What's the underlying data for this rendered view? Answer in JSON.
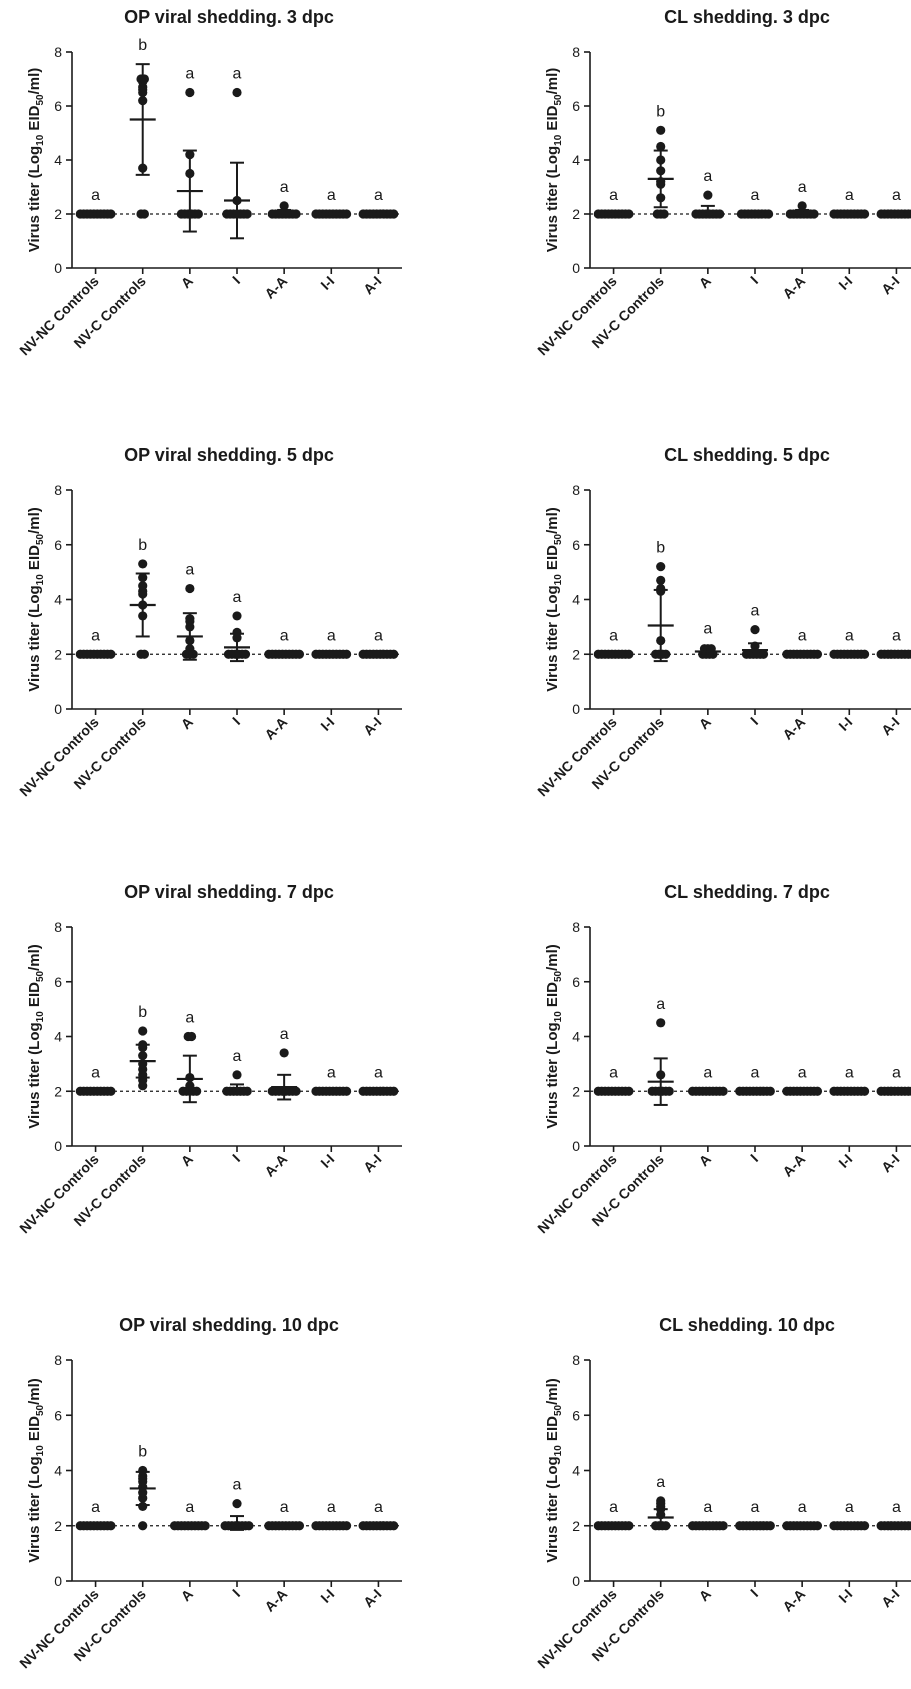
{
  "chart_data": [
    {
      "type": "scatter",
      "title": "OP viral shedding. 3 dpc",
      "ylabel": "Virus titer (Log10 EID50/ml)",
      "ylim": [
        0,
        8
      ],
      "yticks": [
        "0",
        "2",
        "4",
        "6",
        "8"
      ],
      "reference_line": 2,
      "categories": [
        "NV-NC Controls",
        "NV-C Controls",
        "A",
        "I",
        "A-A",
        "I-I",
        "A-I"
      ],
      "letters": [
        "a",
        "b",
        "a",
        "a",
        "a",
        "a",
        "a"
      ],
      "mean": [
        2.0,
        5.5,
        2.85,
        2.5,
        2.05,
        2.0,
        2.0
      ],
      "sd": [
        0,
        2.05,
        1.5,
        1.4,
        0.1,
        0,
        0
      ],
      "points": [
        [
          2,
          2,
          2,
          2,
          2,
          2,
          2,
          2,
          2,
          2
        ],
        [
          2,
          2,
          3.7,
          6.2,
          6.5,
          6.6,
          6.7,
          6.9,
          7.0,
          7.0
        ],
        [
          2,
          2,
          2,
          2,
          2,
          2,
          3.5,
          4.2,
          6.5
        ],
        [
          2,
          2,
          2,
          2,
          2,
          2,
          2,
          2.5,
          6.5
        ],
        [
          2,
          2,
          2,
          2,
          2,
          2,
          2,
          2,
          2.3
        ],
        [
          2,
          2,
          2,
          2,
          2,
          2,
          2,
          2,
          2,
          2
        ],
        [
          2,
          2,
          2,
          2,
          2,
          2,
          2,
          2,
          2,
          2
        ]
      ]
    },
    {
      "type": "scatter",
      "title": "CL shedding. 3 dpc",
      "ylabel": "Virus titer (Log10 EID50/ml)",
      "ylim": [
        0,
        8
      ],
      "yticks": [
        "0",
        "2",
        "4",
        "6",
        "8"
      ],
      "reference_line": 2,
      "categories": [
        "NV-NC Controls",
        "NV-C Controls",
        "A",
        "I",
        "A-A",
        "I-I",
        "A-I"
      ],
      "letters": [
        "a",
        "b",
        "a",
        "a",
        "a",
        "a",
        "a"
      ],
      "mean": [
        2.0,
        3.3,
        2.1,
        2.0,
        2.05,
        2.0,
        2.0
      ],
      "sd": [
        0,
        1.05,
        0.2,
        0,
        0.1,
        0,
        0
      ],
      "points": [
        [
          2,
          2,
          2,
          2,
          2,
          2,
          2,
          2,
          2,
          2
        ],
        [
          2,
          2,
          2,
          2.6,
          3.1,
          3.2,
          3.6,
          4.0,
          4.5,
          5.1
        ],
        [
          2,
          2,
          2,
          2,
          2,
          2,
          2,
          2,
          2.7
        ],
        [
          2,
          2,
          2,
          2,
          2,
          2,
          2,
          2,
          2
        ],
        [
          2,
          2,
          2,
          2,
          2,
          2,
          2,
          2,
          2.3
        ],
        [
          2,
          2,
          2,
          2,
          2,
          2,
          2,
          2,
          2,
          2
        ],
        [
          2,
          2,
          2,
          2,
          2,
          2,
          2,
          2,
          2,
          2
        ]
      ]
    },
    {
      "type": "scatter",
      "title": "OP viral shedding. 5 dpc",
      "ylabel": "Virus titer (Log10 EID50/ml)",
      "ylim": [
        0,
        8
      ],
      "yticks": [
        "0",
        "2",
        "4",
        "6",
        "8"
      ],
      "reference_line": 2,
      "categories": [
        "NV-NC Controls",
        "NV-C Controls",
        "A",
        "I",
        "A-A",
        "I-I",
        "A-I"
      ],
      "letters": [
        "a",
        "b",
        "a",
        "a",
        "a",
        "a",
        "a"
      ],
      "mean": [
        2.0,
        3.8,
        2.65,
        2.25,
        2.0,
        2.0,
        2.0
      ],
      "sd": [
        0,
        1.15,
        0.85,
        0.5,
        0,
        0,
        0
      ],
      "points": [
        [
          2,
          2,
          2,
          2,
          2,
          2,
          2,
          2,
          2,
          2
        ],
        [
          2,
          2,
          3.4,
          3.8,
          4.2,
          4.3,
          4.5,
          4.8,
          5.3
        ],
        [
          2,
          2,
          2,
          2.2,
          2.5,
          3.0,
          3.2,
          3.3,
          4.4
        ],
        [
          2,
          2,
          2,
          2,
          2,
          2,
          2.6,
          2.8,
          3.4
        ],
        [
          2,
          2,
          2,
          2,
          2,
          2,
          2,
          2,
          2,
          2
        ],
        [
          2,
          2,
          2,
          2,
          2,
          2,
          2,
          2,
          2,
          2
        ],
        [
          2,
          2,
          2,
          2,
          2,
          2,
          2,
          2,
          2,
          2
        ]
      ]
    },
    {
      "type": "scatter",
      "title": "CL shedding. 5 dpc",
      "ylabel": "Virus titer (Log10 EID50/ml)",
      "ylim": [
        0,
        8
      ],
      "yticks": [
        "0",
        "2",
        "4",
        "6",
        "8"
      ],
      "reference_line": 2,
      "categories": [
        "NV-NC Controls",
        "NV-C Controls",
        "A",
        "I",
        "A-A",
        "I-I",
        "A-I"
      ],
      "letters": [
        "a",
        "b",
        "a",
        "a",
        "a",
        "a",
        "a"
      ],
      "mean": [
        2.0,
        3.05,
        2.1,
        2.15,
        2.0,
        2.0,
        2.0
      ],
      "sd": [
        0,
        1.3,
        0.15,
        0.25,
        0,
        0,
        0
      ],
      "points": [
        [
          2,
          2,
          2,
          2,
          2,
          2,
          2,
          2,
          2,
          2
        ],
        [
          2,
          2,
          2,
          2,
          2.5,
          4.3,
          4.4,
          4.7,
          5.2
        ],
        [
          2,
          2,
          2,
          2,
          2.1,
          2.1,
          2.2,
          2.2,
          2.2
        ],
        [
          2,
          2,
          2,
          2,
          2,
          2,
          2.3,
          2.9
        ],
        [
          2,
          2,
          2,
          2,
          2,
          2,
          2,
          2,
          2,
          2
        ],
        [
          2,
          2,
          2,
          2,
          2,
          2,
          2,
          2,
          2,
          2
        ],
        [
          2,
          2,
          2,
          2,
          2,
          2,
          2,
          2,
          2,
          2
        ]
      ]
    },
    {
      "type": "scatter",
      "title": "OP viral shedding. 7 dpc",
      "ylabel": "Virus titer (Log10 EID50/ml)",
      "ylim": [
        0,
        8
      ],
      "yticks": [
        "0",
        "2",
        "4",
        "6",
        "8"
      ],
      "reference_line": 2,
      "categories": [
        "NV-NC Controls",
        "NV-C Controls",
        "A",
        "I",
        "A-A",
        "I-I",
        "A-I"
      ],
      "letters": [
        "a",
        "b",
        "a",
        "a",
        "a",
        "a",
        "a"
      ],
      "mean": [
        2.0,
        3.1,
        2.45,
        2.1,
        2.15,
        2.0,
        2.0
      ],
      "sd": [
        0,
        0.6,
        0.85,
        0.15,
        0.45,
        0,
        0
      ],
      "points": [
        [
          2,
          2,
          2,
          2,
          2,
          2,
          2,
          2,
          2,
          2
        ],
        [
          2.2,
          2.4,
          2.6,
          2.8,
          3.0,
          3.3,
          3.6,
          3.7,
          4.2
        ],
        [
          2,
          2,
          2,
          2,
          2,
          2.2,
          2.5,
          4.0,
          4.0
        ],
        [
          2,
          2,
          2,
          2,
          2,
          2,
          2,
          2.6
        ],
        [
          2,
          2,
          2,
          2,
          2,
          2,
          2,
          2,
          3.4
        ],
        [
          2,
          2,
          2,
          2,
          2,
          2,
          2,
          2,
          2,
          2
        ],
        [
          2,
          2,
          2,
          2,
          2,
          2,
          2,
          2,
          2,
          2
        ]
      ]
    },
    {
      "type": "scatter",
      "title": "CL shedding. 7 dpc",
      "ylabel": "Virus titer (Log10 EID50/ml)",
      "ylim": [
        0,
        8
      ],
      "yticks": [
        "0",
        "2",
        "4",
        "6",
        "8"
      ],
      "reference_line": 2,
      "categories": [
        "NV-NC Controls",
        "NV-C Controls",
        "A",
        "I",
        "A-A",
        "I-I",
        "A-I"
      ],
      "letters": [
        "a",
        "a",
        "a",
        "a",
        "a",
        "a",
        "a"
      ],
      "mean": [
        2.0,
        2.35,
        2.0,
        2.0,
        2.0,
        2.0,
        2.0
      ],
      "sd": [
        0,
        0.85,
        0,
        0,
        0,
        0,
        0
      ],
      "points": [
        [
          2,
          2,
          2,
          2,
          2,
          2,
          2,
          2,
          2,
          2
        ],
        [
          2,
          2,
          2,
          2,
          2,
          2,
          2.6,
          4.5
        ],
        [
          2,
          2,
          2,
          2,
          2,
          2,
          2,
          2,
          2,
          2
        ],
        [
          2,
          2,
          2,
          2,
          2,
          2,
          2,
          2,
          2,
          2
        ],
        [
          2,
          2,
          2,
          2,
          2,
          2,
          2,
          2,
          2,
          2
        ],
        [
          2,
          2,
          2,
          2,
          2,
          2,
          2,
          2,
          2,
          2
        ],
        [
          2,
          2,
          2,
          2,
          2,
          2,
          2,
          2,
          2,
          2
        ]
      ]
    },
    {
      "type": "scatter",
      "title": "OP viral shedding. 10 dpc",
      "ylabel": "Virus titer (Log10 EID50/ml)",
      "ylim": [
        0,
        8
      ],
      "yticks": [
        "0",
        "2",
        "4",
        "6",
        "8"
      ],
      "reference_line": 2,
      "categories": [
        "NV-NC Controls",
        "NV-C Controls",
        "A",
        "I",
        "A-A",
        "I-I",
        "A-I"
      ],
      "letters": [
        "a",
        "b",
        "a",
        "a",
        "a",
        "a",
        "a"
      ],
      "mean": [
        2.0,
        3.35,
        2.0,
        2.1,
        2.0,
        2.0,
        2.0
      ],
      "sd": [
        0,
        0.6,
        0,
        0.25,
        0,
        0,
        0
      ],
      "points": [
        [
          2,
          2,
          2,
          2,
          2,
          2,
          2,
          2,
          2,
          2
        ],
        [
          2,
          2.7,
          3.0,
          3.2,
          3.4,
          3.6,
          3.7,
          3.8,
          4.0
        ],
        [
          2,
          2,
          2,
          2,
          2,
          2,
          2,
          2,
          2,
          2
        ],
        [
          2,
          2,
          2,
          2,
          2,
          2,
          2,
          2,
          2.8
        ],
        [
          2,
          2,
          2,
          2,
          2,
          2,
          2,
          2,
          2,
          2
        ],
        [
          2,
          2,
          2,
          2,
          2,
          2,
          2,
          2,
          2,
          2
        ],
        [
          2,
          2,
          2,
          2,
          2,
          2,
          2,
          2,
          2,
          2
        ]
      ]
    },
    {
      "type": "scatter",
      "title": "CL shedding. 10 dpc",
      "ylabel": "Virus titer (Log10 EID50/ml)",
      "ylim": [
        0,
        8
      ],
      "yticks": [
        "0",
        "2",
        "4",
        "6",
        "8"
      ],
      "reference_line": 2,
      "categories": [
        "NV-NC Controls",
        "NV-C Controls",
        "A",
        "I",
        "A-A",
        "I-I",
        "A-I"
      ],
      "letters": [
        "a",
        "a",
        "a",
        "a",
        "a",
        "a",
        "a"
      ],
      "mean": [
        2.0,
        2.3,
        2.0,
        2.0,
        2.0,
        2.0,
        2.0
      ],
      "sd": [
        0,
        0.3,
        0,
        0,
        0,
        0,
        0
      ],
      "points": [
        [
          2,
          2,
          2,
          2,
          2,
          2,
          2,
          2,
          2,
          2
        ],
        [
          2,
          2,
          2,
          2,
          2.4,
          2.6,
          2.7,
          2.8,
          2.9
        ],
        [
          2,
          2,
          2,
          2,
          2,
          2,
          2,
          2,
          2,
          2
        ],
        [
          2,
          2,
          2,
          2,
          2,
          2,
          2,
          2,
          2,
          2
        ],
        [
          2,
          2,
          2,
          2,
          2,
          2,
          2,
          2,
          2,
          2
        ],
        [
          2,
          2,
          2,
          2,
          2,
          2,
          2,
          2,
          2,
          2
        ],
        [
          2,
          2,
          2,
          2,
          2,
          2,
          2,
          2,
          2,
          2
        ]
      ]
    }
  ],
  "colors": {
    "ink": "#1a1a1a",
    "background": "#ffffff"
  }
}
